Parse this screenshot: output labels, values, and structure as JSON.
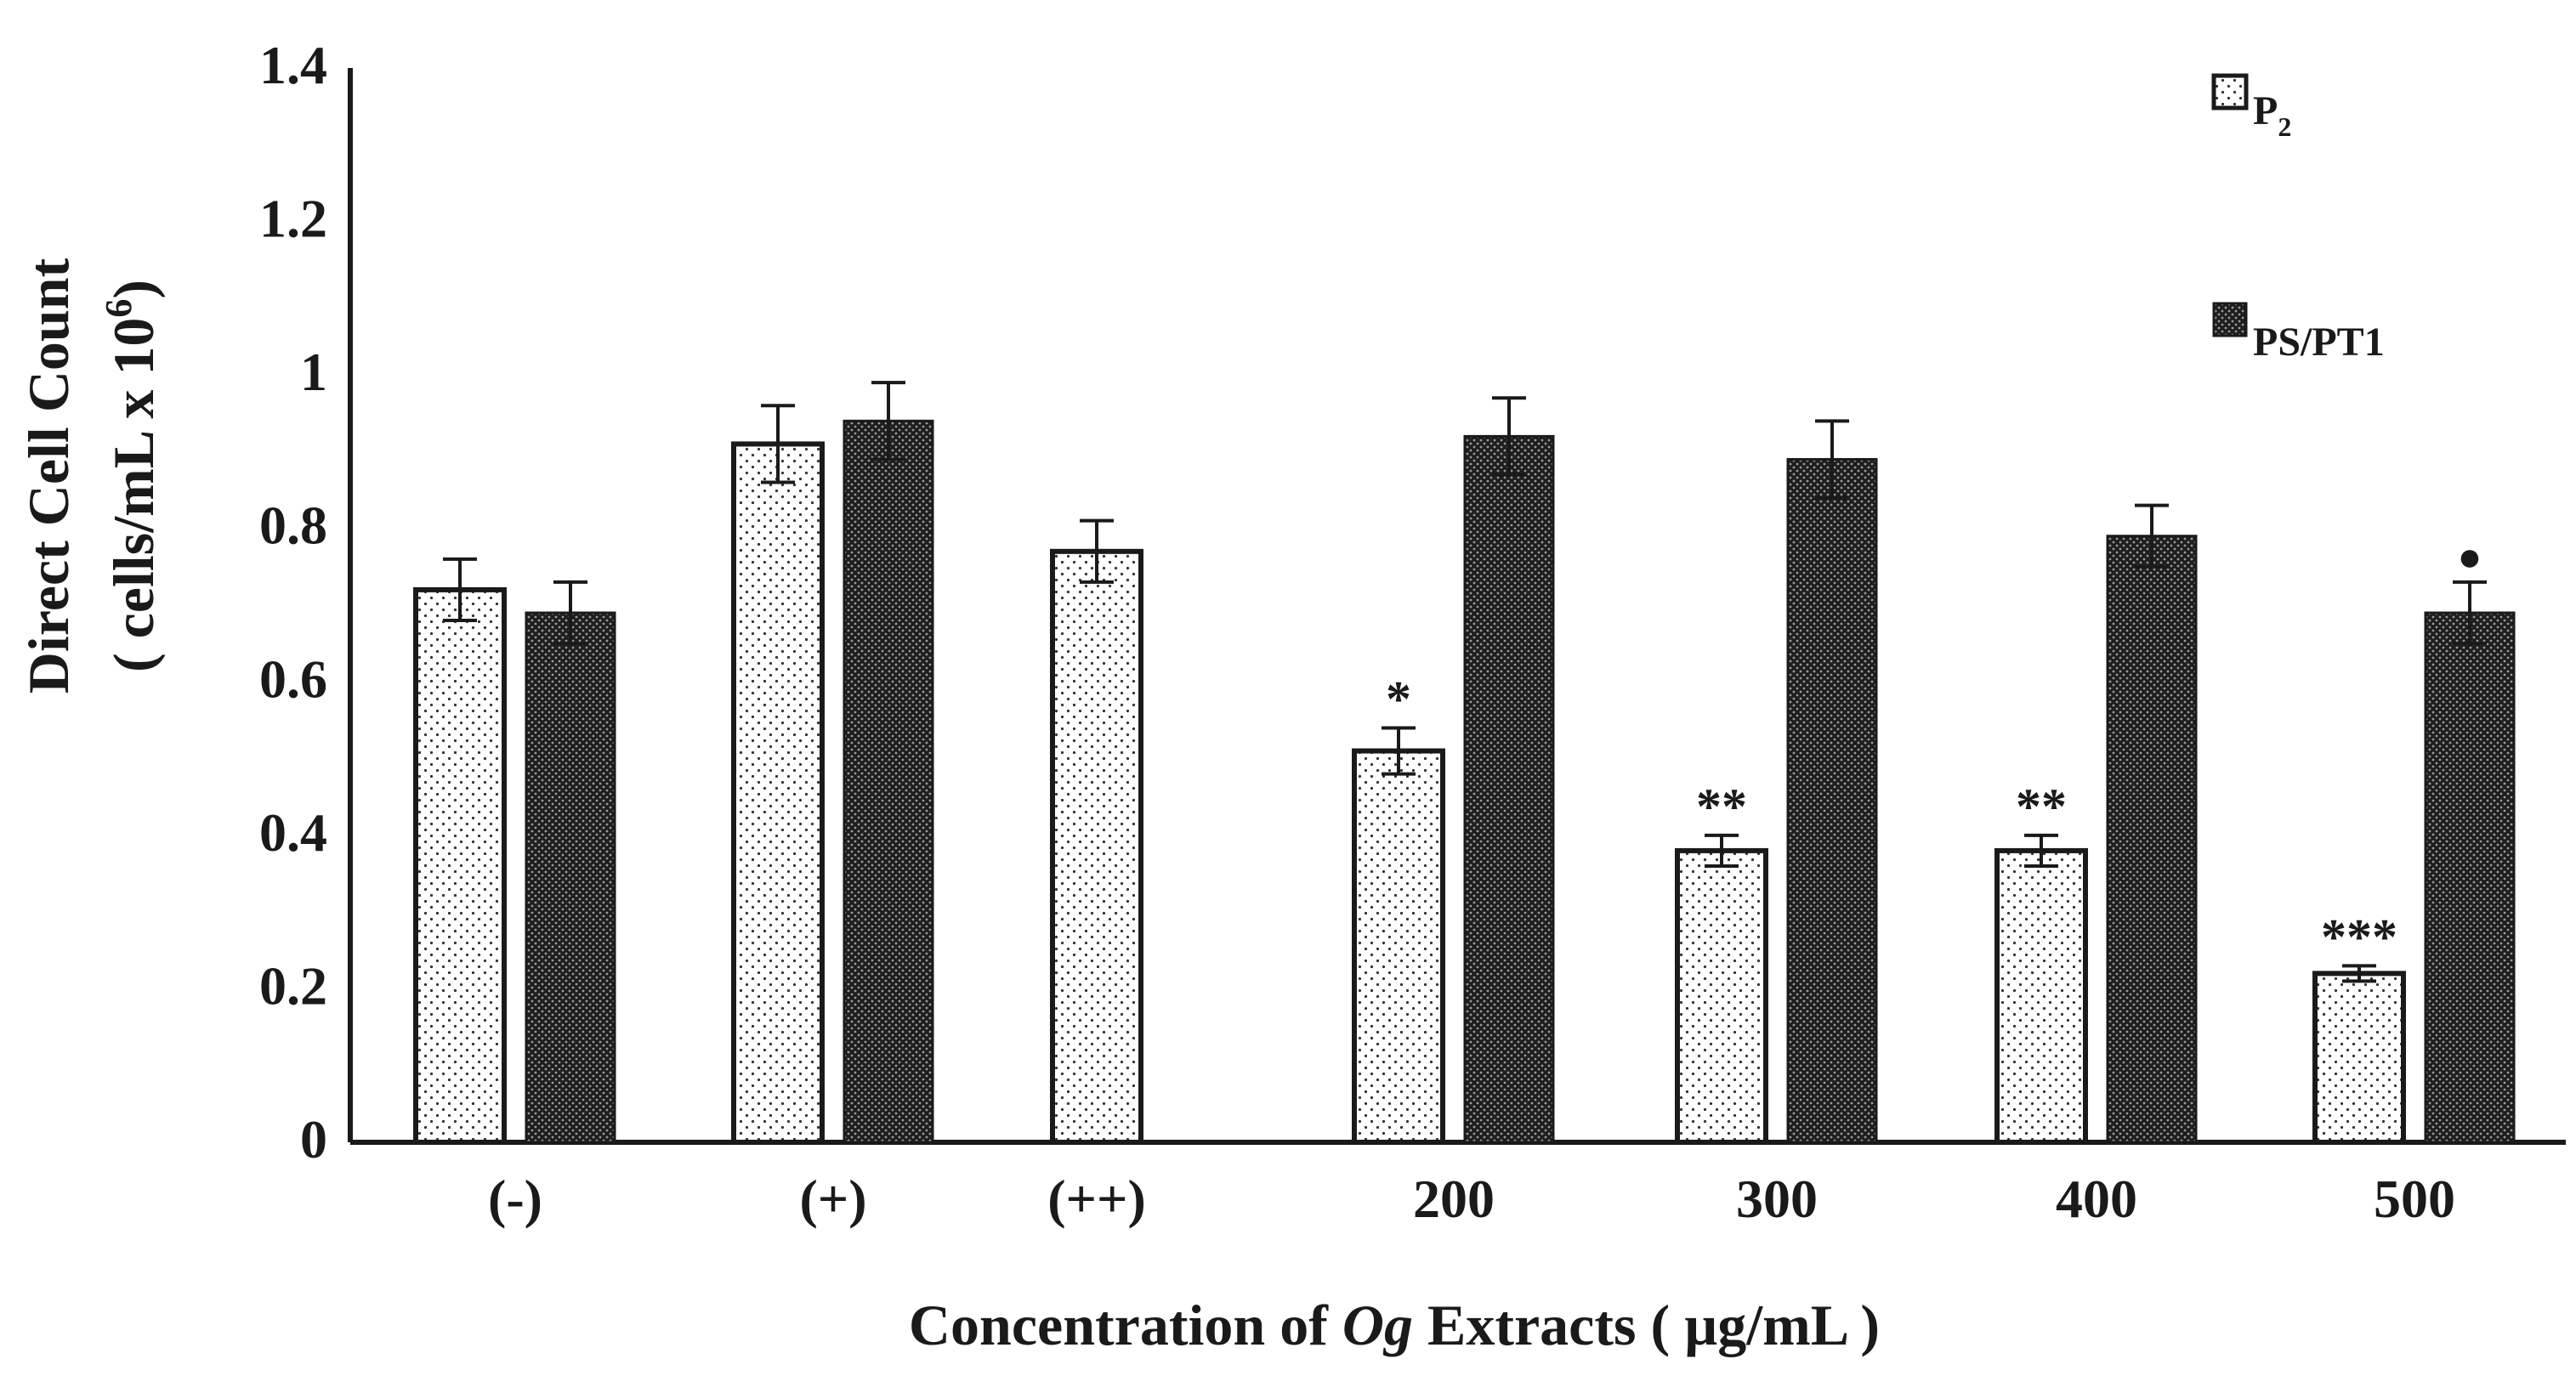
{
  "chart_data": {
    "type": "bar",
    "categories": [
      "(-)",
      "(+)",
      "(++)",
      "200",
      "300",
      "400",
      "500"
    ],
    "series": [
      {
        "name": "P2",
        "legend_base": "P",
        "legend_sub": "2",
        "fill": "light-dotted",
        "values": [
          0.72,
          0.91,
          0.77,
          0.51,
          0.38,
          0.38,
          0.22
        ],
        "errors": [
          0.04,
          0.05,
          0.04,
          0.03,
          0.02,
          0.02,
          0.01
        ],
        "annotations": [
          "",
          "",
          "",
          "*",
          "**",
          "**",
          "***"
        ]
      },
      {
        "name": "PS/PT1",
        "legend_base": "PS/PT1",
        "legend_sub": "",
        "fill": "dark-dotted",
        "values": [
          0.69,
          0.94,
          null,
          0.92,
          0.89,
          0.79,
          0.69
        ],
        "errors": [
          0.04,
          0.05,
          null,
          0.05,
          0.05,
          0.04,
          0.04
        ],
        "annotations": [
          "",
          "",
          "",
          "",
          "",
          "",
          "●"
        ]
      }
    ],
    "title": "",
    "xlabel_parts": [
      {
        "text": "Concentration of ",
        "italic": false
      },
      {
        "text": "Og",
        "italic": true
      },
      {
        "text": " Extracts ( µg/mL )",
        "italic": false
      }
    ],
    "ylabel_line1": "Direct Cell Count",
    "ylabel_line2_pre": "( cells/mL x 10",
    "ylabel_line2_sup": "6",
    "ylabel_line2_post": ")",
    "ylim": [
      0,
      1.4
    ],
    "yticks": [
      0,
      0.2,
      0.4,
      0.6,
      0.8,
      1,
      1.2,
      1.4
    ],
    "ytick_labels": [
      "0",
      "0.2",
      "0.4",
      "0.6",
      "0.8",
      "1",
      "1.2",
      "1.4"
    ],
    "grid": false,
    "legend_position": "top-right"
  }
}
